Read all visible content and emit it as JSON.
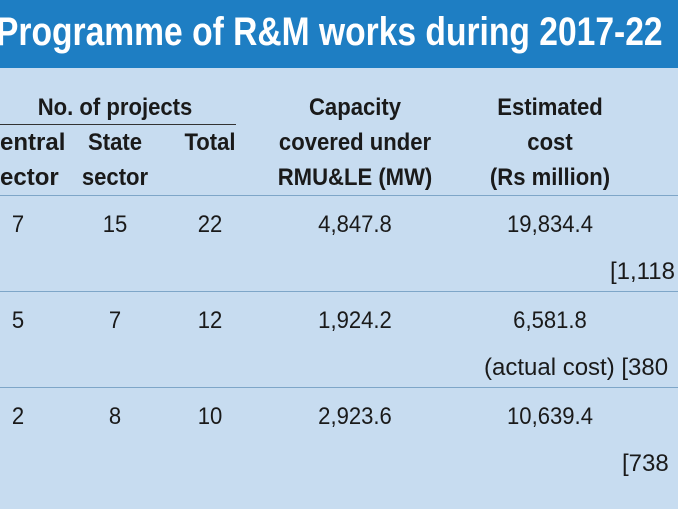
{
  "header": {
    "title": "Programme of R&M works during 2017-22"
  },
  "table": {
    "group_header": "No. of projects",
    "columns": [
      [
        "entral",
        "ector"
      ],
      [
        "State",
        "sector"
      ],
      [
        "Total"
      ],
      [
        "Capacity",
        "covered under",
        "RMU&LE (MW)"
      ],
      [
        "Estimated",
        "cost",
        "(Rs million)"
      ]
    ],
    "rows": [
      [
        "7",
        "15",
        "22",
        "4,847.8",
        "19,834.4"
      ],
      [
        "5",
        "7",
        "12",
        "1,924.2",
        "6,581.8"
      ],
      [
        "2",
        "8",
        "10",
        "2,923.6",
        "10,639.4"
      ]
    ],
    "notes": [
      "[1,118",
      "(actual cost)  [380",
      "[738"
    ]
  }
}
